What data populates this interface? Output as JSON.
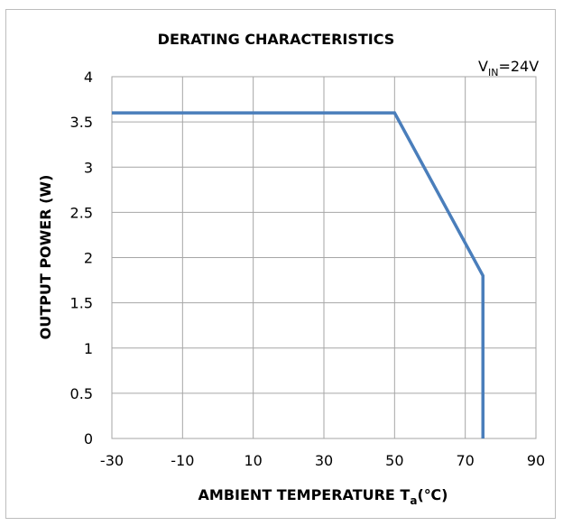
{
  "chart_data": {
    "type": "line",
    "title": "DERATING CHARACTERISTICS",
    "annotation": {
      "base": "V",
      "subscript": "IN",
      "suffix": "=24V"
    },
    "xlabel": {
      "base": "AMBIENT TEMPERATURE T",
      "subscript": "a",
      "suffix": "(℃)"
    },
    "ylabel": "OUTPUT POWER (W)",
    "xlim": [
      -30,
      90
    ],
    "ylim": [
      0,
      4
    ],
    "x_ticks": [
      -30,
      -10,
      10,
      30,
      50,
      70,
      90
    ],
    "y_ticks": [
      0,
      0.5,
      1,
      1.5,
      2,
      2.5,
      3,
      3.5,
      4
    ],
    "grid": true,
    "series": [
      {
        "color": "#4a7ebb",
        "points": [
          [
            -30,
            3.6
          ],
          [
            50,
            3.6
          ],
          [
            75,
            1.8
          ],
          [
            75,
            0
          ]
        ]
      }
    ]
  }
}
